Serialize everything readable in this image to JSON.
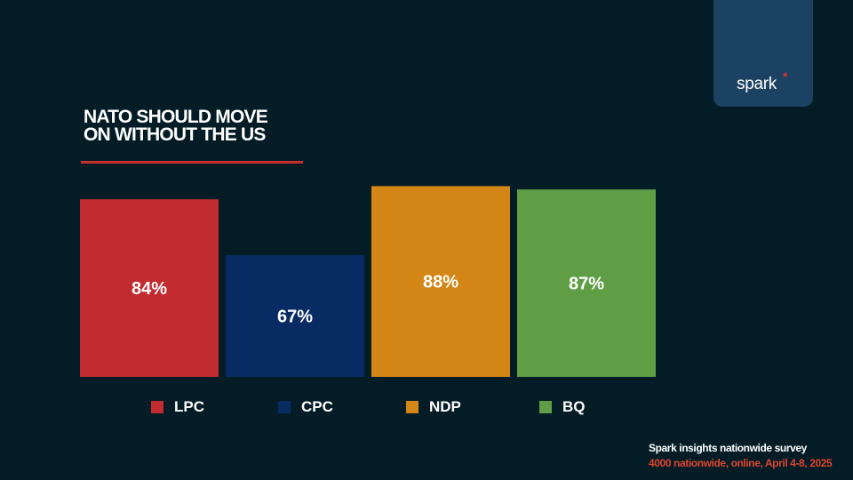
{
  "logo": {
    "text": "spark",
    "star": "*"
  },
  "chart_data": {
    "type": "bar",
    "title": "NATO SHOULD MOVE ON WITHOUT THE US",
    "title_lines": [
      "NATO SHOULD MOVE",
      "ON WITHOUT THE US"
    ],
    "categories": [
      "LPC",
      "CPC",
      "NDP",
      "BQ"
    ],
    "values": [
      84,
      67,
      88,
      87
    ],
    "labels": [
      "84%",
      "67%",
      "88%",
      "87%"
    ],
    "colors": [
      "#c22b30",
      "#082b63",
      "#d48716",
      "#5f9e45"
    ],
    "ylim": [
      30,
      100
    ],
    "xlabel": "",
    "ylabel": "",
    "legend": "bottom"
  },
  "source": {
    "line1": "Spark insights nationwide survey",
    "line2": "4000 nationwide, online, April 4-8, 2025"
  }
}
